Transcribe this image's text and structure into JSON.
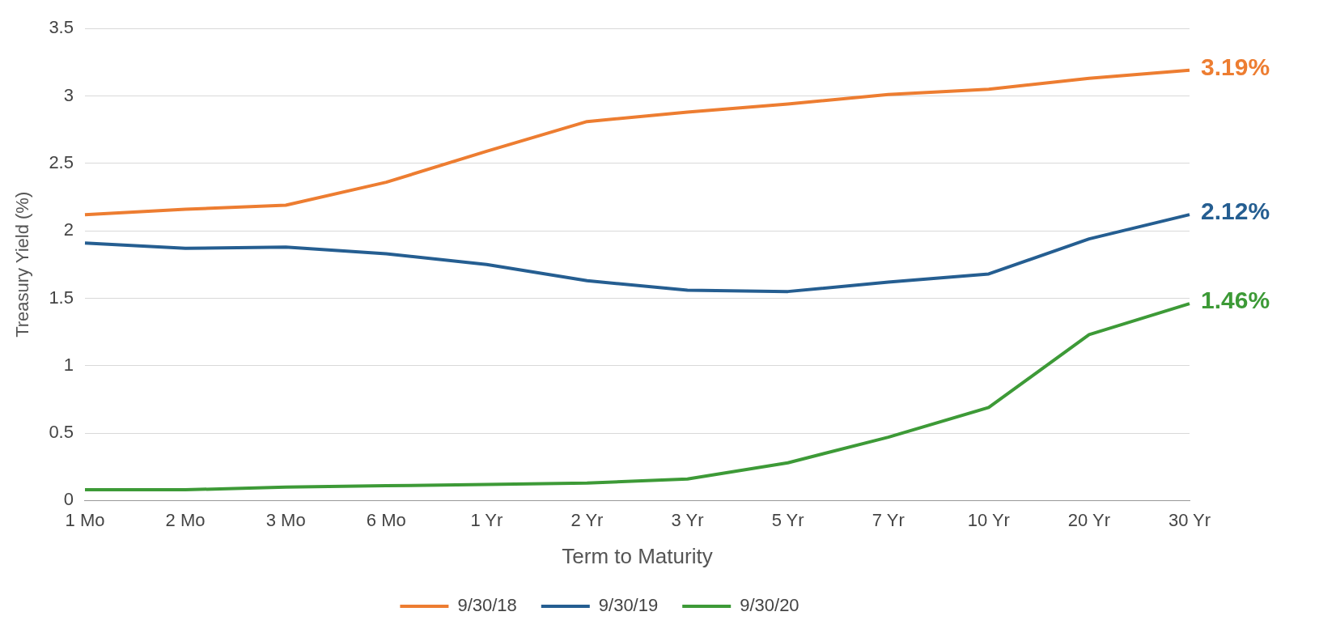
{
  "chart_data": {
    "type": "line",
    "xlabel": "Term to Maturity",
    "ylabel": "Treasury Yield (%)",
    "categories": [
      "1 Mo",
      "2 Mo",
      "3 Mo",
      "6 Mo",
      "1 Yr",
      "2 Yr",
      "3 Yr",
      "5 Yr",
      "7 Yr",
      "10 Yr",
      "20 Yr",
      "30 Yr"
    ],
    "series": [
      {
        "name": "9/30/18",
        "color": "#ed7d31",
        "values": [
          2.12,
          2.16,
          2.19,
          2.36,
          2.59,
          2.81,
          2.88,
          2.94,
          3.01,
          3.05,
          3.13,
          3.19
        ]
      },
      {
        "name": "9/30/19",
        "color": "#255e91",
        "values": [
          1.91,
          1.87,
          1.88,
          1.83,
          1.75,
          1.63,
          1.56,
          1.55,
          1.62,
          1.68,
          1.94,
          2.12
        ]
      },
      {
        "name": "9/30/20",
        "color": "#3d9a37",
        "values": [
          0.08,
          0.08,
          0.1,
          0.11,
          0.12,
          0.13,
          0.16,
          0.28,
          0.47,
          0.69,
          1.23,
          1.46
        ]
      }
    ],
    "ylim": [
      0,
      3.5
    ],
    "yticks": [
      0,
      0.5,
      1,
      1.5,
      2,
      2.5,
      3,
      3.5
    ],
    "grid": "y",
    "legend": "bottom",
    "marker": "none",
    "line_style": "solid",
    "annotations": [
      {
        "text": "3.19%",
        "x": "30 Yr",
        "y": 3.19
      },
      {
        "text": "2.12%",
        "x": "30 Yr",
        "y": 2.12
      },
      {
        "text": "1.46%",
        "x": "30 Yr",
        "y": 1.46
      }
    ]
  }
}
